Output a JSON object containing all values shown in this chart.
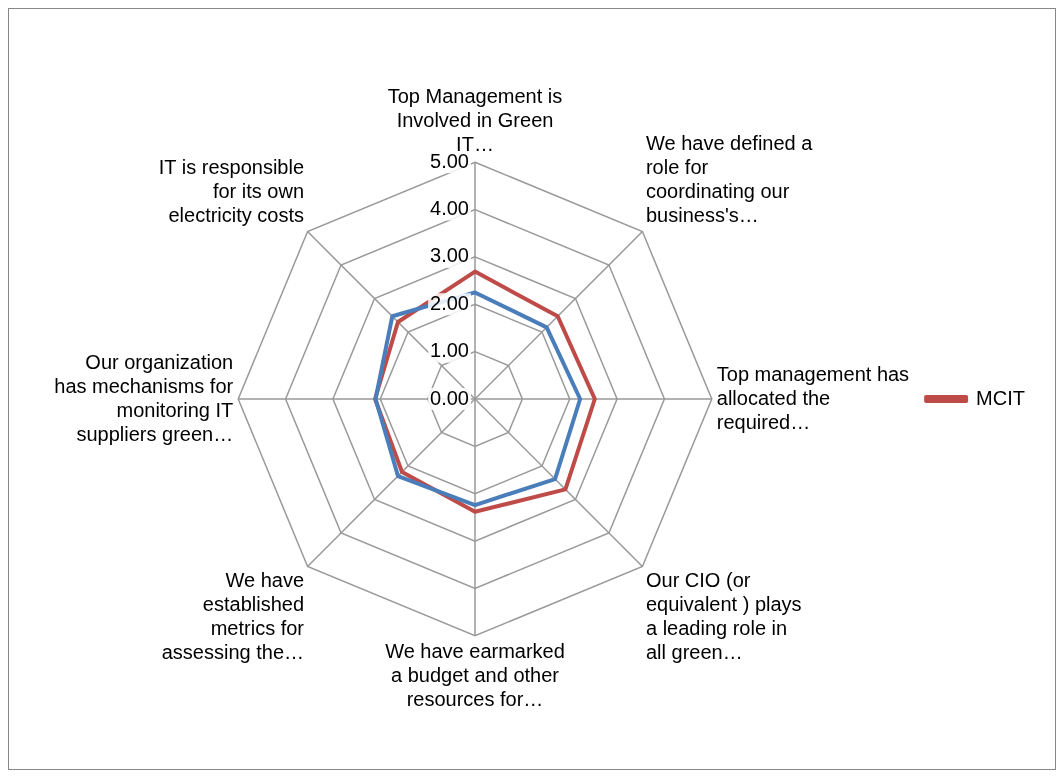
{
  "chart_data": {
    "type": "radar",
    "categories": [
      "Top Management is Involved in Green IT…",
      "We have defined a role for coordinating our business's…",
      "Top management has allocated the required…",
      "Our CIO (or equivalent ) plays a leading role in all green…",
      "We have earmarked a budget and other resources for…",
      "We have established metrics for assessing the…",
      "Our organization has mechanisms for monitoring IT suppliers green…",
      "IT is responsible for its own electricity costs"
    ],
    "series": [
      {
        "color": "#4a7ebb",
        "values": [
          2.25,
          2.14,
          2.22,
          2.39,
          2.24,
          2.3,
          2.1,
          2.47
        ]
      },
      {
        "name": "MCIT",
        "color": "#be4b48",
        "values": [
          2.69,
          2.47,
          2.53,
          2.7,
          2.38,
          2.18,
          2.11,
          2.3
        ]
      }
    ],
    "ylim": [
      0,
      5
    ],
    "yticks": [
      {
        "value": 0,
        "label": "0.00"
      },
      {
        "value": 1,
        "label": "1.00"
      },
      {
        "value": 2,
        "label": "2.00"
      },
      {
        "value": 3,
        "label": "3.00"
      },
      {
        "value": 4,
        "label": "4.00"
      },
      {
        "value": 5,
        "label": "5.00"
      }
    ],
    "grid": true,
    "legend": "right",
    "marker": "none",
    "line_style": "solid"
  }
}
